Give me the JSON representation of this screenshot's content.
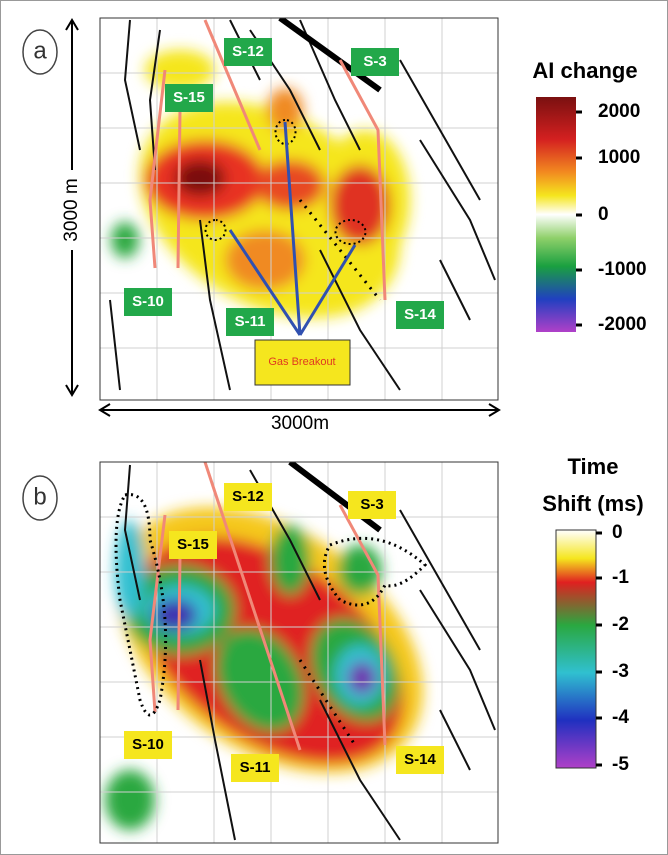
{
  "panels": [
    {
      "label": "a",
      "scale_vertical": "3000 m",
      "scale_horizontal": "3000m",
      "colorbar": {
        "title_lines": [
          "AI change"
        ],
        "ticks": [
          "2000",
          "1000",
          "0",
          "-1000",
          "-2000"
        ]
      },
      "wells": [
        "S-12",
        "S-3",
        "S-15",
        "S-10",
        "S-11",
        "S-14"
      ],
      "annotation": "Gas Breakout"
    },
    {
      "label": "b",
      "colorbar": {
        "title_lines": [
          "Time",
          "Shift (ms)"
        ],
        "ticks": [
          "0",
          "-1",
          "-2",
          "-3",
          "-4",
          "-5"
        ]
      },
      "wells": [
        "S-12",
        "S-3",
        "S-15",
        "S-10",
        "S-11",
        "S-14"
      ]
    }
  ]
}
